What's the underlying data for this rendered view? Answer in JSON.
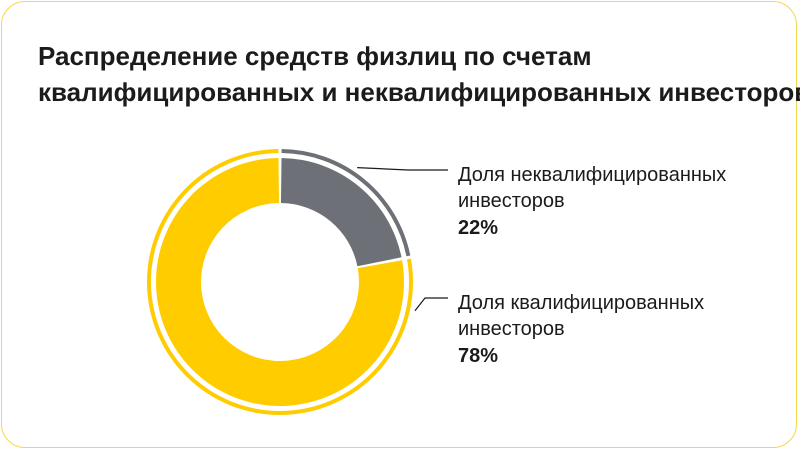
{
  "chart_data": {
    "type": "pie",
    "title": "Распределение средств физлиц по счетам квалифицированных и неквалифицированных инвесторов",
    "title_lines": [
      "Распределение средств физлиц по счетам",
      "квалифицированных и неквалифицированных инвесторов"
    ],
    "slices": [
      {
        "label_lines": [
          "Доля неквалифицированных",
          "инвесторов"
        ],
        "value": 22,
        "value_label": "22%",
        "color": "#6d7177"
      },
      {
        "label_lines": [
          "Доля квалифицированных",
          "инвесторов"
        ],
        "value": 78,
        "value_label": "78%",
        "color": "#ffcc00"
      }
    ],
    "legend": "right"
  },
  "colors": {
    "border": "#f2d84a",
    "outer_ring_grey": "#6d7177",
    "outer_ring_yellow": "#ffcc00",
    "leader_line": "#1b1b1b"
  }
}
